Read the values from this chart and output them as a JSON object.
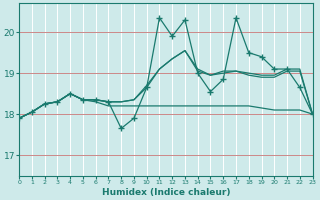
{
  "xlabel": "Humidex (Indice chaleur)",
  "bg_color": "#ceeaea",
  "grid_color": "#ffffff",
  "line_color": "#1a7a6e",
  "red_line_color": "#cc8888",
  "x_ticks": [
    0,
    1,
    2,
    3,
    4,
    5,
    6,
    7,
    8,
    9,
    10,
    11,
    12,
    13,
    14,
    15,
    16,
    17,
    18,
    19,
    20,
    21,
    22,
    23
  ],
  "y_ticks": [
    17,
    18,
    19,
    20
  ],
  "xlim": [
    0,
    23
  ],
  "ylim": [
    16.5,
    20.7
  ],
  "line1_y": [
    17.9,
    18.05,
    18.25,
    18.3,
    18.5,
    18.35,
    18.3,
    18.2,
    18.2,
    18.2,
    18.2,
    18.2,
    18.2,
    18.2,
    18.2,
    18.2,
    18.2,
    18.2,
    18.2,
    18.15,
    18.1,
    18.1,
    18.1,
    18.0
  ],
  "line2_y": [
    17.9,
    18.05,
    18.25,
    18.3,
    18.5,
    18.35,
    18.35,
    18.3,
    18.3,
    18.35,
    18.7,
    19.1,
    19.35,
    19.55,
    19.1,
    18.95,
    19.05,
    19.05,
    19.0,
    18.95,
    18.95,
    19.1,
    19.1,
    18.0
  ],
  "line3_y": [
    17.9,
    18.05,
    18.25,
    18.3,
    18.5,
    18.35,
    18.35,
    18.3,
    17.65,
    17.9,
    18.65,
    20.35,
    19.9,
    20.3,
    19.0,
    18.55,
    18.85,
    20.35,
    19.5,
    19.4,
    19.1,
    19.1,
    18.65,
    18.0
  ],
  "line4_y": [
    17.9,
    18.05,
    18.25,
    18.3,
    18.5,
    18.35,
    18.35,
    18.3,
    18.3,
    18.35,
    18.65,
    19.1,
    19.35,
    19.55,
    19.05,
    18.95,
    19.0,
    19.05,
    18.95,
    18.9,
    18.9,
    19.05,
    19.05,
    18.0
  ]
}
